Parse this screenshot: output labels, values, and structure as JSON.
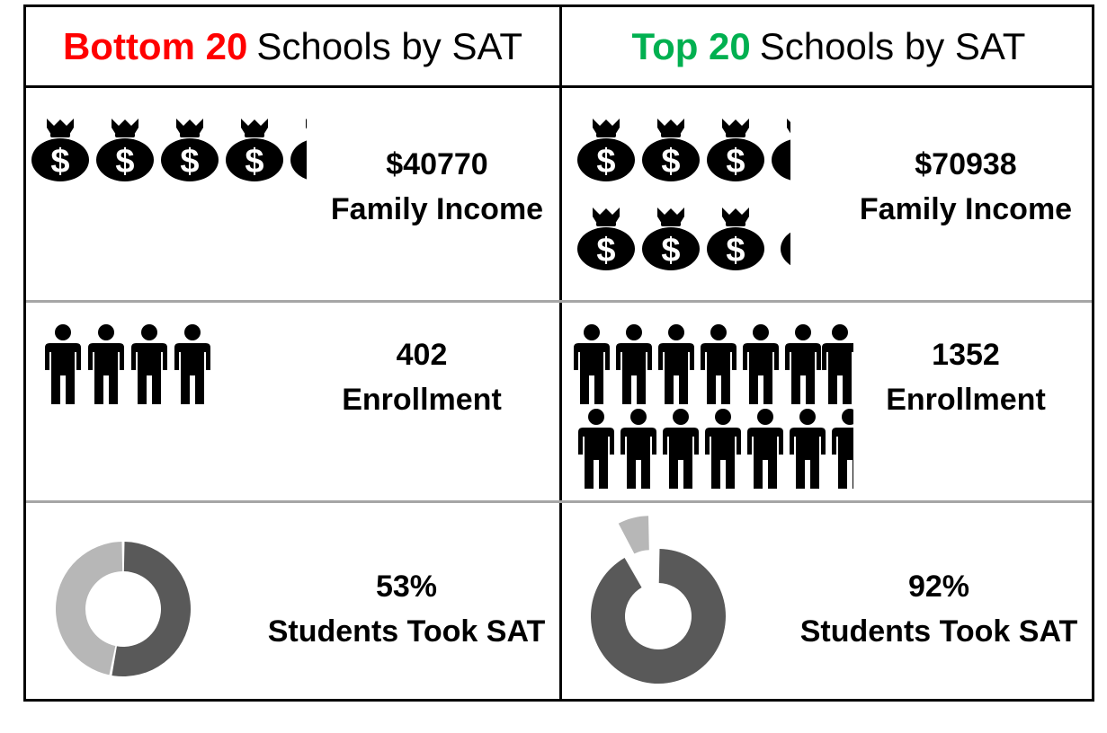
{
  "left": {
    "header_highlight": "Bottom 20",
    "header_rest": "Schools by SAT",
    "header_color": "#ff0000",
    "income_value": "$40770",
    "income_label": "Family Income",
    "enrollment_value": "402",
    "enrollment_label": "Enrollment",
    "sat_value": "53%",
    "sat_label": "Students Took SAT"
  },
  "right": {
    "header_highlight": "Top 20",
    "header_rest": "Schools by SAT",
    "header_color": "#00b050",
    "income_value": "$70938",
    "income_label": "Family Income",
    "enrollment_value": "1352",
    "enrollment_label": "Enrollment",
    "sat_value": "92%",
    "sat_label": "Students Took SAT"
  },
  "icons": {
    "income": "money-bag-icon",
    "enrollment": "person-icon",
    "sat": "donut-chart"
  },
  "colors": {
    "dark_slice": "#595959",
    "light_slice": "#b7b7b7"
  },
  "chart_data": [
    {
      "type": "pictograph",
      "group": "Bottom 20",
      "metric": "Family Income",
      "value": 40770,
      "icons": 4.2
    },
    {
      "type": "pictograph",
      "group": "Top 20",
      "metric": "Family Income",
      "value": 70938,
      "icons": 7.3
    },
    {
      "type": "pictograph",
      "group": "Bottom 20",
      "metric": "Enrollment",
      "value": 402,
      "icons": 4.4
    },
    {
      "type": "pictograph",
      "group": "Top 20",
      "metric": "Enrollment",
      "value": 1352,
      "icons": 13.9
    },
    {
      "type": "pie",
      "group": "Bottom 20",
      "metric": "Students Took SAT",
      "values": [
        53,
        47
      ]
    },
    {
      "type": "pie",
      "group": "Top 20",
      "metric": "Students Took SAT",
      "values": [
        92,
        8
      ]
    }
  ]
}
